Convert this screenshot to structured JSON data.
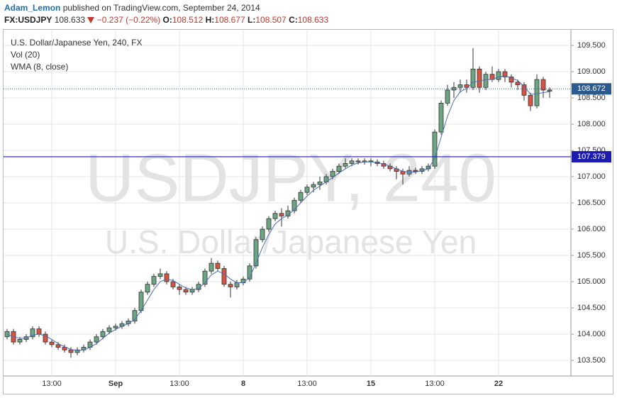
{
  "header": {
    "author": "Adam_Lemon",
    "published": "published on TradingView.com, September 24, 2014",
    "symbol": "FX:USDJPY",
    "last": "108.633",
    "change": "−0.237 (−0.22%)",
    "open_label": "O:",
    "open": "108.512",
    "high_label": "H:",
    "high": "108.677",
    "low_label": "L:",
    "low": "108.507",
    "close_label": "C:",
    "close": "108.633"
  },
  "chart_data": {
    "type": "candlestick",
    "title": "U.S. Dollar/Japanese Yen, 240, FX",
    "indicators": [
      "Vol (20)"
    ],
    "watermark": [
      "USDJPY, 240",
      "U.S. Dollar/Japanese Yen"
    ],
    "categories": [
      null,
      null,
      null,
      null,
      null,
      null,
      null,
      "13:00",
      null,
      null,
      null,
      null,
      null,
      null,
      null,
      null,
      null,
      "Sep",
      null,
      null,
      null,
      null,
      null,
      null,
      null,
      null,
      null,
      "13:00",
      null,
      null,
      null,
      null,
      null,
      null,
      null,
      null,
      null,
      "8",
      null,
      null,
      null,
      null,
      null,
      null,
      null,
      null,
      null,
      "13:00",
      null,
      null,
      null,
      null,
      null,
      null,
      null,
      null,
      null,
      "15",
      null,
      null,
      null,
      null,
      null,
      null,
      null,
      null,
      null,
      "13:00",
      null,
      null,
      null,
      null,
      null,
      null,
      null,
      null,
      null,
      "22",
      null,
      null,
      null,
      null,
      null,
      null,
      null,
      null
    ],
    "candles": [
      [
        103.95,
        104.1,
        103.9,
        104.05
      ],
      [
        104.05,
        104.1,
        103.8,
        103.85
      ],
      [
        103.85,
        103.95,
        103.8,
        103.9
      ],
      [
        103.9,
        104.0,
        103.85,
        103.95
      ],
      [
        103.95,
        104.15,
        103.9,
        104.1
      ],
      [
        104.1,
        104.15,
        103.95,
        104.0
      ],
      [
        104.0,
        104.05,
        103.8,
        103.85
      ],
      [
        103.85,
        103.9,
        103.75,
        103.8
      ],
      [
        103.8,
        103.85,
        103.7,
        103.75
      ],
      [
        103.75,
        103.8,
        103.65,
        103.7
      ],
      [
        103.7,
        103.75,
        103.55,
        103.65
      ],
      [
        103.65,
        103.75,
        103.6,
        103.7
      ],
      [
        103.7,
        103.8,
        103.65,
        103.75
      ],
      [
        103.75,
        103.9,
        103.7,
        103.85
      ],
      [
        103.85,
        104.0,
        103.8,
        103.95
      ],
      [
        103.95,
        104.1,
        103.9,
        104.05
      ],
      [
        104.05,
        104.17,
        104.0,
        104.12
      ],
      [
        104.12,
        104.2,
        104.07,
        104.15
      ],
      [
        104.15,
        104.25,
        104.1,
        104.2
      ],
      [
        104.2,
        104.3,
        104.15,
        104.25
      ],
      [
        104.25,
        104.5,
        104.2,
        104.45
      ],
      [
        104.45,
        104.85,
        104.4,
        104.8
      ],
      [
        104.8,
        105.0,
        104.75,
        104.95
      ],
      [
        104.95,
        105.15,
        104.9,
        105.1
      ],
      [
        105.1,
        105.25,
        105.05,
        105.15
      ],
      [
        105.15,
        105.2,
        104.95,
        105.0
      ],
      [
        105.0,
        105.05,
        104.85,
        104.9
      ],
      [
        104.9,
        104.95,
        104.75,
        104.85
      ],
      [
        104.85,
        104.9,
        104.75,
        104.8
      ],
      [
        104.8,
        104.9,
        104.75,
        104.85
      ],
      [
        104.85,
        105.0,
        104.8,
        104.95
      ],
      [
        104.95,
        105.25,
        104.9,
        105.2
      ],
      [
        105.2,
        105.45,
        105.15,
        105.35
      ],
      [
        105.35,
        105.4,
        105.2,
        105.25
      ],
      [
        105.25,
        105.3,
        104.9,
        104.95
      ],
      [
        104.95,
        105.0,
        104.7,
        104.9
      ],
      [
        104.9,
        105.03,
        104.85,
        104.98
      ],
      [
        104.98,
        105.1,
        104.93,
        105.05
      ],
      [
        105.05,
        105.35,
        105.0,
        105.3
      ],
      [
        105.3,
        105.85,
        105.25,
        105.8
      ],
      [
        105.8,
        106.05,
        105.75,
        106.0
      ],
      [
        106.0,
        106.25,
        105.95,
        106.2
      ],
      [
        106.2,
        106.35,
        106.15,
        106.3
      ],
      [
        106.3,
        106.4,
        106.05,
        106.25
      ],
      [
        106.25,
        106.45,
        106.2,
        106.35
      ],
      [
        106.35,
        106.6,
        106.3,
        106.55
      ],
      [
        106.55,
        106.75,
        106.5,
        106.7
      ],
      [
        106.7,
        106.85,
        106.65,
        106.8
      ],
      [
        106.8,
        106.9,
        106.7,
        106.85
      ],
      [
        106.85,
        107.0,
        106.75,
        106.9
      ],
      [
        106.9,
        107.05,
        106.85,
        107.0
      ],
      [
        107.0,
        107.15,
        106.95,
        107.1
      ],
      [
        107.1,
        107.25,
        107.05,
        107.2
      ],
      [
        107.2,
        107.35,
        107.15,
        107.25
      ],
      [
        107.25,
        107.35,
        107.2,
        107.3
      ],
      [
        107.3,
        107.35,
        107.23,
        107.28
      ],
      [
        107.28,
        107.35,
        107.23,
        107.3
      ],
      [
        107.3,
        107.35,
        107.2,
        107.28
      ],
      [
        107.28,
        107.33,
        107.2,
        107.25
      ],
      [
        107.25,
        107.3,
        107.15,
        107.2
      ],
      [
        107.2,
        107.25,
        107.1,
        107.15
      ],
      [
        107.15,
        107.2,
        106.95,
        107.1
      ],
      [
        107.1,
        107.15,
        106.85,
        107.05
      ],
      [
        107.05,
        107.2,
        107.0,
        107.12
      ],
      [
        107.12,
        107.17,
        107.05,
        107.1
      ],
      [
        107.1,
        107.2,
        107.05,
        107.15
      ],
      [
        107.15,
        107.25,
        107.1,
        107.2
      ],
      [
        107.2,
        107.9,
        107.15,
        107.85
      ],
      [
        107.85,
        108.45,
        107.8,
        108.4
      ],
      [
        108.4,
        108.75,
        108.35,
        108.65
      ],
      [
        108.65,
        108.8,
        108.5,
        108.7
      ],
      [
        108.7,
        108.85,
        108.6,
        108.75
      ],
      [
        108.75,
        108.85,
        108.6,
        108.7
      ],
      [
        108.7,
        109.45,
        108.65,
        109.05
      ],
      [
        109.05,
        109.1,
        108.6,
        108.7
      ],
      [
        108.7,
        109.0,
        108.65,
        108.95
      ],
      [
        108.95,
        109.1,
        108.8,
        108.85
      ],
      [
        108.85,
        109.05,
        108.8,
        109.0
      ],
      [
        109.0,
        109.05,
        108.8,
        108.9
      ],
      [
        108.9,
        108.95,
        108.7,
        108.8
      ],
      [
        108.8,
        108.85,
        108.65,
        108.75
      ],
      [
        108.75,
        108.8,
        108.45,
        108.55
      ],
      [
        108.55,
        108.6,
        108.25,
        108.35
      ],
      [
        108.35,
        108.95,
        108.3,
        108.85
      ],
      [
        108.85,
        108.9,
        108.5,
        108.65
      ],
      [
        108.65,
        108.7,
        108.5,
        108.63
      ]
    ],
    "up_color": "#6ba583",
    "down_color": "#d75442",
    "wma": {
      "name": "WMA (8, close)",
      "color": "#4a6fb5",
      "values": [
        104.0,
        103.95,
        103.92,
        103.92,
        103.98,
        104.0,
        103.97,
        103.9,
        103.82,
        103.76,
        103.71,
        103.69,
        103.7,
        103.75,
        103.82,
        103.92,
        104.02,
        104.09,
        104.15,
        104.2,
        104.28,
        104.45,
        104.65,
        104.85,
        105.0,
        105.05,
        105.02,
        104.95,
        104.88,
        104.85,
        104.87,
        104.98,
        105.13,
        105.2,
        105.15,
        105.05,
        104.98,
        104.98,
        105.08,
        105.35,
        105.65,
        105.9,
        106.1,
        106.2,
        106.27,
        106.37,
        106.5,
        106.63,
        106.74,
        106.82,
        106.9,
        106.98,
        107.07,
        107.15,
        107.22,
        107.26,
        107.28,
        107.28,
        107.27,
        107.24,
        107.2,
        107.15,
        107.1,
        107.09,
        107.09,
        107.11,
        107.15,
        107.35,
        107.75,
        108.15,
        108.45,
        108.62,
        108.68,
        108.8,
        108.82,
        108.85,
        108.85,
        108.9,
        108.92,
        108.88,
        108.83,
        108.72,
        108.57,
        108.58,
        108.6,
        108.62
      ]
    },
    "price_lines": [
      {
        "value": 108.672,
        "color": "#2c5a8c",
        "dashed": true
      },
      {
        "value": 107.379,
        "color": "#1c1cb0",
        "dashed": false
      }
    ],
    "ylim": [
      103.2,
      109.8
    ],
    "yticks": [
      {
        "value": 103.5,
        "label": "103.500"
      },
      {
        "value": 104,
        "label": "104.000"
      },
      {
        "value": 104.5,
        "label": "104.500"
      },
      {
        "value": 105,
        "label": "105.000"
      },
      {
        "value": 105.5,
        "label": "105.500"
      },
      {
        "value": 106,
        "label": "106.000"
      },
      {
        "value": 106.5,
        "label": "106.500"
      },
      {
        "value": 107,
        "label": "107.000"
      },
      {
        "value": 107.5,
        "label": "107.500"
      },
      {
        "value": 108,
        "label": "108.000"
      },
      {
        "value": 108.5,
        "label": "108.500"
      },
      {
        "value": 109,
        "label": "109.000"
      },
      {
        "value": 109.5,
        "label": "109.500"
      }
    ],
    "grid": true
  }
}
